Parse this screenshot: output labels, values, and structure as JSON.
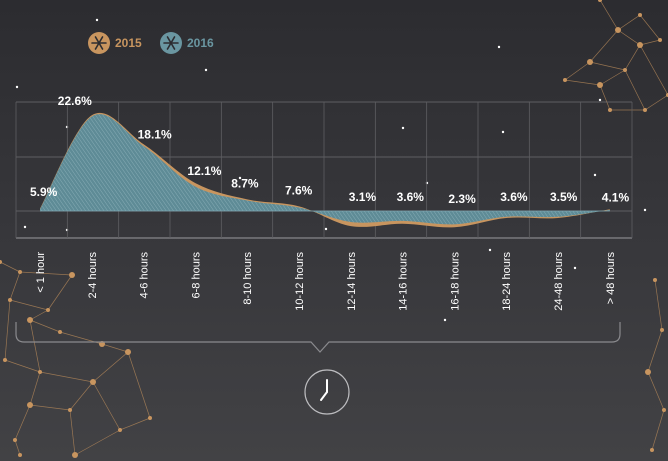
{
  "legend": {
    "items": [
      {
        "label": "2015",
        "color": "#c8955f",
        "icon": "snowflake-badge-icon"
      },
      {
        "label": "2016",
        "color": "#6a96a1",
        "icon": "snowflake-badge-icon"
      }
    ]
  },
  "bottom_icon": "clock-icon",
  "chart_data": {
    "type": "area",
    "title": "",
    "xlabel": "",
    "ylabel": "",
    "grid": true,
    "legend_position": "top-left",
    "categories": [
      "< 1 hour",
      "2-4 hours",
      "4-6 hours",
      "6-8 hours",
      "8-10 hours",
      "10-12 hours",
      "12-14 hours",
      "14-16 hours",
      "16-18 hours",
      "18-24 hours",
      "24-48 hours",
      "> 48 hours"
    ],
    "data_labels": [
      "5.9%",
      "22.6%",
      "18.1%",
      "12.1%",
      "8.7%",
      "7.6%",
      "3.1%",
      "3.6%",
      "2.3%",
      "3.6%",
      "3.5%",
      "4.1%"
    ],
    "series": [
      {
        "name": "2015",
        "color": "#c8955f",
        "values": [
          0.4,
          16.5,
          11.5,
          4.8,
          2.0,
          0.8,
          -2.6,
          -2.2,
          -2.8,
          -1.2,
          -1.2,
          0.3
        ]
      },
      {
        "name": "2016",
        "color": "#6a96a1",
        "values": [
          0.3,
          16.3,
          11.2,
          4.2,
          1.8,
          0.6,
          -1.9,
          -1.7,
          -2.3,
          -1.0,
          -1.0,
          0.2
        ]
      }
    ],
    "ylim": [
      -5.5,
      20
    ]
  }
}
